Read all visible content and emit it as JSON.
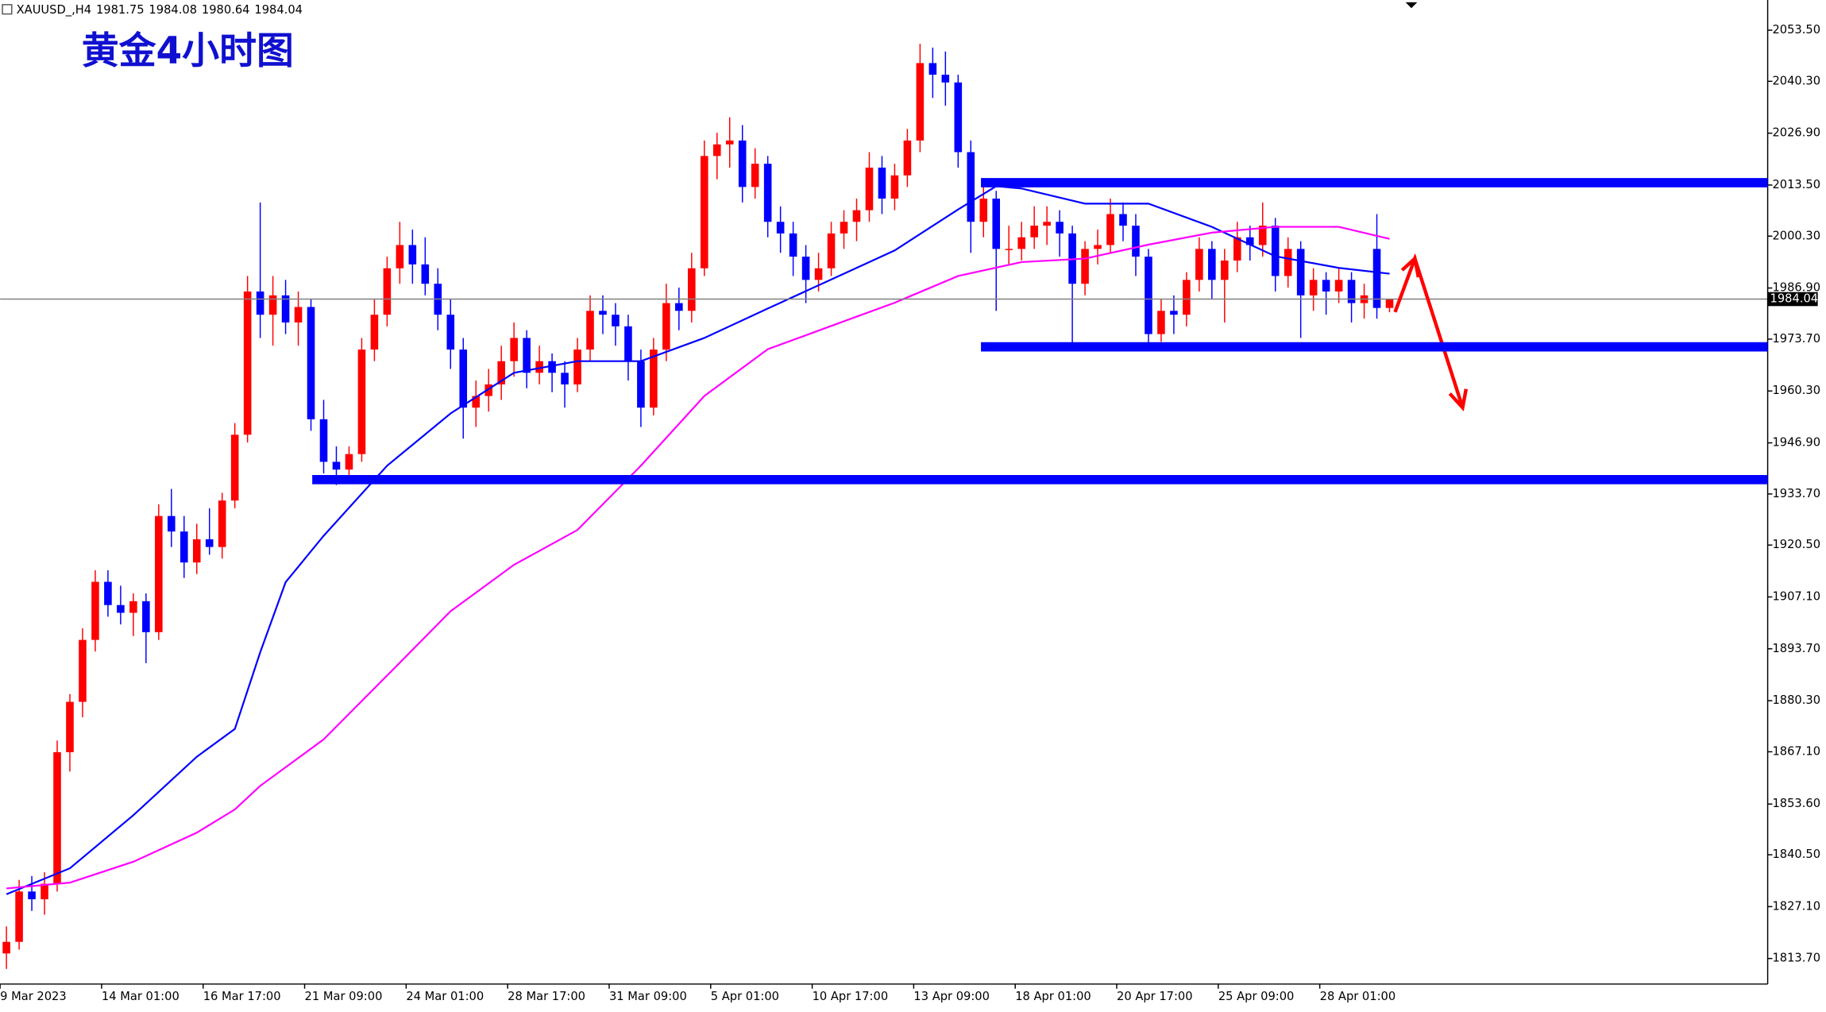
{
  "chart_data": {
    "type": "candlestick",
    "symbol": "XAUUSD_,H4",
    "title": "黄金4小时图",
    "up_color": "#ff0000",
    "down_color": "#0000ff",
    "ylim": [
      1807.1,
      2061.3
    ],
    "xlim": [
      -0.5,
      138.8
    ],
    "yticks": [
      {
        "value": 1813.7,
        "label": "1813.70"
      },
      {
        "value": 1827.1,
        "label": "1827.10"
      },
      {
        "value": 1840.5,
        "label": "1840.50"
      },
      {
        "value": 1853.6,
        "label": "1853.60"
      },
      {
        "value": 1867.1,
        "label": "1867.10"
      },
      {
        "value": 1880.3,
        "label": "1880.30"
      },
      {
        "value": 1893.7,
        "label": "1893.70"
      },
      {
        "value": 1907.1,
        "label": "1907.10"
      },
      {
        "value": 1920.5,
        "label": "1920.50"
      },
      {
        "value": 1933.7,
        "label": "1933.70"
      },
      {
        "value": 1946.9,
        "label": "1946.90"
      },
      {
        "value": 1960.3,
        "label": "1960.30"
      },
      {
        "value": 1973.7,
        "label": "1973.70"
      },
      {
        "value": 1986.9,
        "label": "1986.90"
      },
      {
        "value": 2000.3,
        "label": "2000.30"
      },
      {
        "value": 2013.5,
        "label": "2013.50"
      },
      {
        "value": 2026.9,
        "label": "2026.90"
      },
      {
        "value": 2040.3,
        "label": "2040.30"
      },
      {
        "value": 2053.5,
        "label": "2053.50"
      }
    ],
    "xticks": [
      {
        "value": -0.5,
        "label": "9 Mar 2023"
      },
      {
        "value": 7.5,
        "label": "14 Mar 01:00"
      },
      {
        "value": 15.5,
        "label": "16 Mar 17:00"
      },
      {
        "value": 23.5,
        "label": "21 Mar 09:00"
      },
      {
        "value": 31.5,
        "label": "24 Mar 01:00"
      },
      {
        "value": 39.5,
        "label": "28 Mar 17:00"
      },
      {
        "value": 47.5,
        "label": "31 Mar 09:00"
      },
      {
        "value": 55.5,
        "label": "5 Apr 01:00"
      },
      {
        "value": 63.5,
        "label": "10 Apr 17:00"
      },
      {
        "value": 71.5,
        "label": "13 Apr 09:00"
      },
      {
        "value": 79.5,
        "label": "18 Apr 01:00"
      },
      {
        "value": 87.5,
        "label": "20 Apr 17:00"
      },
      {
        "value": 95.5,
        "label": "25 Apr 09:00"
      },
      {
        "value": 103.5,
        "label": "28 Apr 01:00"
      }
    ],
    "ohlc": [
      [
        1815,
        1822,
        1811,
        1818
      ],
      [
        1818,
        1834,
        1816,
        1831
      ],
      [
        1831,
        1835,
        1826,
        1829
      ],
      [
        1829,
        1836,
        1825,
        1833
      ],
      [
        1833,
        1870,
        1831,
        1867
      ],
      [
        1867,
        1882,
        1862,
        1880
      ],
      [
        1880,
        1899,
        1876,
        1896
      ],
      [
        1896,
        1914,
        1893,
        1911
      ],
      [
        1911,
        1914,
        1902,
        1905
      ],
      [
        1905,
        1910,
        1900,
        1903
      ],
      [
        1903,
        1908,
        1897,
        1906
      ],
      [
        1906,
        1908,
        1890,
        1898
      ],
      [
        1898,
        1931,
        1896,
        1928
      ],
      [
        1928,
        1935,
        1920,
        1924
      ],
      [
        1924,
        1928,
        1912,
        1916
      ],
      [
        1916,
        1926,
        1913,
        1922
      ],
      [
        1922,
        1930,
        1918,
        1920
      ],
      [
        1920,
        1934,
        1917,
        1932
      ],
      [
        1932,
        1952,
        1930,
        1949
      ],
      [
        1949,
        1990,
        1947,
        1986
      ],
      [
        1986,
        2009,
        1974,
        1980
      ],
      [
        1980,
        1990,
        1972,
        1985
      ],
      [
        1985,
        1989,
        1975,
        1978
      ],
      [
        1978,
        1986,
        1972,
        1982
      ],
      [
        1982,
        1984,
        1950,
        1953
      ],
      [
        1953,
        1958,
        1939,
        1942
      ],
      [
        1942,
        1946,
        1936,
        1940
      ],
      [
        1940,
        1946,
        1937,
        1944
      ],
      [
        1944,
        1974,
        1942,
        1971
      ],
      [
        1971,
        1984,
        1968,
        1980
      ],
      [
        1980,
        1995,
        1977,
        1992
      ],
      [
        1992,
        2004,
        1988,
        1998
      ],
      [
        1998,
        2002,
        1988,
        1993
      ],
      [
        1993,
        2000,
        1985,
        1988
      ],
      [
        1988,
        1992,
        1976,
        1980
      ],
      [
        1980,
        1984,
        1966,
        1971
      ],
      [
        1971,
        1974,
        1948,
        1956
      ],
      [
        1956,
        1963,
        1951,
        1959
      ],
      [
        1959,
        1966,
        1955,
        1962
      ],
      [
        1962,
        1972,
        1958,
        1968
      ],
      [
        1968,
        1978,
        1964,
        1974
      ],
      [
        1974,
        1976,
        1961,
        1965
      ],
      [
        1965,
        1972,
        1962,
        1968
      ],
      [
        1968,
        1970,
        1960,
        1965
      ],
      [
        1965,
        1968,
        1956,
        1962
      ],
      [
        1962,
        1974,
        1960,
        1971
      ],
      [
        1971,
        1985,
        1968,
        1981
      ],
      [
        1981,
        1985,
        1975,
        1980
      ],
      [
        1980,
        1983,
        1972,
        1977
      ],
      [
        1977,
        1980,
        1963,
        1968
      ],
      [
        1968,
        1971,
        1951,
        1956
      ],
      [
        1956,
        1974,
        1954,
        1971
      ],
      [
        1971,
        1988,
        1968,
        1983
      ],
      [
        1983,
        1987,
        1976,
        1981
      ],
      [
        1981,
        1996,
        1978,
        1992
      ],
      [
        1992,
        2025,
        1990,
        2021
      ],
      [
        2021,
        2027,
        2015,
        2024
      ],
      [
        2024,
        2031,
        2018,
        2025
      ],
      [
        2025,
        2029,
        2009,
        2013
      ],
      [
        2013,
        2023,
        2010,
        2019
      ],
      [
        2019,
        2021,
        2000,
        2004
      ],
      [
        2004,
        2008,
        1996,
        2001
      ],
      [
        2001,
        2004,
        1990,
        1995
      ],
      [
        1995,
        1998,
        1983,
        1989
      ],
      [
        1989,
        1996,
        1986,
        1992
      ],
      [
        1992,
        2004,
        1990,
        2001
      ],
      [
        2001,
        2007,
        1997,
        2004
      ],
      [
        2004,
        2010,
        1999,
        2007
      ],
      [
        2007,
        2022,
        2004,
        2018
      ],
      [
        2018,
        2021,
        2006,
        2010
      ],
      [
        2010,
        2019,
        2007,
        2016
      ],
      [
        2016,
        2028,
        2013,
        2025
      ],
      [
        2025,
        2050,
        2022,
        2045
      ],
      [
        2045,
        2049,
        2036,
        2042
      ],
      [
        2042,
        2048,
        2034,
        2040
      ],
      [
        2040,
        2042,
        2018,
        2022
      ],
      [
        2022,
        2025,
        1996,
        2004
      ],
      [
        2004,
        2014,
        2000,
        2010
      ],
      [
        2010,
        2012,
        1981,
        1997
      ],
      [
        1997,
        2003,
        1993,
        1997
      ],
      [
        1997,
        2004,
        1994,
        2000
      ],
      [
        2000,
        2008,
        1997,
        2003
      ],
      [
        2003,
        2008,
        1998,
        2004
      ],
      [
        2004,
        2007,
        1995,
        2001
      ],
      [
        2001,
        2003,
        1971,
        1988
      ],
      [
        1988,
        1999,
        1985,
        1997
      ],
      [
        1997,
        2002,
        1993,
        1998
      ],
      [
        1998,
        2010,
        1996,
        2006
      ],
      [
        2006,
        2009,
        1999,
        2003
      ],
      [
        2003,
        2006,
        1990,
        1995
      ],
      [
        1995,
        1997,
        1972,
        1975
      ],
      [
        1975,
        1984,
        1973,
        1981
      ],
      [
        1981,
        1985,
        1975,
        1980
      ],
      [
        1980,
        1991,
        1977,
        1989
      ],
      [
        1989,
        2000,
        1986,
        1997
      ],
      [
        1997,
        1999,
        1984,
        1989
      ],
      [
        1989,
        1997,
        1978,
        1994
      ],
      [
        1994,
        2004,
        1991,
        2000
      ],
      [
        2000,
        2003,
        1994,
        1998
      ],
      [
        1998,
        2009,
        1995,
        2003
      ],
      [
        2003,
        2005,
        1986,
        1990
      ],
      [
        1990,
        2000,
        1987,
        1997
      ],
      [
        1997,
        1999,
        1974,
        1985
      ],
      [
        1985,
        1992,
        1981,
        1989
      ],
      [
        1989,
        1991,
        1980,
        1986
      ],
      [
        1986,
        1992,
        1983,
        1989
      ],
      [
        1989,
        1991,
        1978,
        1983
      ],
      [
        1983,
        1988,
        1979,
        1985
      ],
      [
        1997,
        2006,
        1979,
        1981.75
      ],
      [
        1981.75,
        1984.08,
        1980.64,
        1984.04
      ]
    ],
    "series": [
      {
        "color": "#0000ff",
        "x": [
          0,
          5,
          10,
          15,
          18,
          20,
          22,
          25,
          30,
          35,
          40,
          45,
          50,
          55,
          60,
          65,
          70,
          75,
          78,
          80,
          85,
          90,
          95,
          100,
          105,
          109
        ],
        "values": [
          1830.3,
          1837,
          1850.7,
          1865.8,
          1873,
          1892.8,
          1910.9,
          1922.9,
          1941,
          1954.5,
          1965,
          1968,
          1968,
          1974,
          1981.6,
          1989.1,
          1996.6,
          2007.2,
          2013.2,
          2012.6,
          2008.7,
          2008.7,
          2002.7,
          1995.1,
          1992.1,
          1990.6
        ]
      },
      {
        "color": "#ff00ff",
        "x": [
          0,
          5,
          10,
          15,
          18,
          20,
          25,
          30,
          35,
          40,
          45,
          50,
          55,
          60,
          65,
          70,
          75,
          80,
          85,
          90,
          95,
          100,
          105,
          109
        ],
        "values": [
          1831.8,
          1833.3,
          1838.7,
          1846.2,
          1852.2,
          1858.3,
          1870.3,
          1886.8,
          1903.4,
          1915.4,
          1924.4,
          1941,
          1959,
          1971.1,
          1977.1,
          1983.1,
          1990,
          1993.6,
          1994.5,
          1998.1,
          2001.2,
          2002.7,
          2002.7,
          1999.6
        ]
      }
    ],
    "levels": [
      2014.1,
      1971.7,
      1937.4
    ],
    "level_start": [
      76.8,
      76.8,
      24.1
    ],
    "level_color": "#0000ff"
  }
}
